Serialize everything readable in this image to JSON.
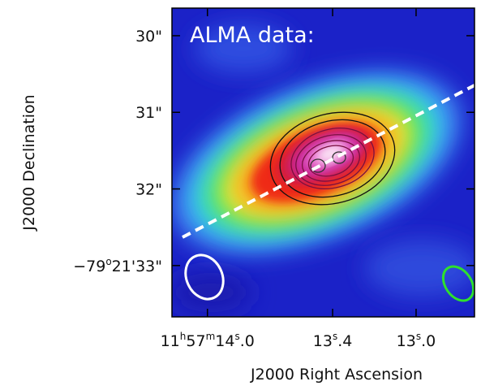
{
  "chart_data": {
    "type": "image",
    "annotation": "ALMA data:",
    "x_label": "J2000 Right Ascension",
    "y_label": "J2000 Declination",
    "xlim": [
      14.17,
      12.72
    ],
    "ylim": [
      29.64,
      33.67
    ],
    "xticks": [
      {
        "value": 14.0,
        "label": [
          "11",
          "h",
          "57",
          "m",
          "14",
          "s",
          ".0"
        ]
      },
      {
        "value": 13.4,
        "label": [
          "13",
          "s",
          ".4"
        ]
      },
      {
        "value": 13.0,
        "label": [
          "13",
          "s",
          ".0"
        ]
      }
    ],
    "yticks": [
      {
        "value": 30,
        "label": [
          "30\""
        ]
      },
      {
        "value": 31,
        "label": [
          "31\""
        ]
      },
      {
        "value": 32,
        "label": [
          "32\""
        ]
      },
      {
        "value": 33,
        "label": [
          "−79",
          "o",
          "21'33\""
        ]
      }
    ]
  }
}
